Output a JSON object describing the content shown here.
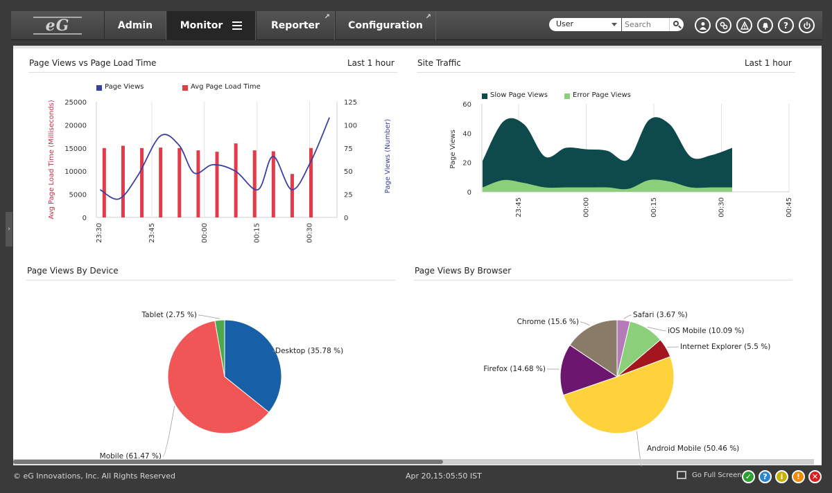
{
  "header": {
    "logo_text": "eG",
    "tabs": [
      {
        "label": "Admin"
      },
      {
        "label": "Monitor"
      },
      {
        "label": "Reporter"
      },
      {
        "label": "Configuration"
      }
    ],
    "user_select_value": "User",
    "search_placeholder": "Search",
    "icons": [
      "user-icon",
      "link-icon",
      "alert-icon",
      "bell-icon",
      "help-icon",
      "power-icon"
    ]
  },
  "panels": {
    "page_views_vs_load": {
      "title": "Page Views vs Page Load Time",
      "range": "Last 1 hour"
    },
    "site_traffic": {
      "title": "Site Traffic",
      "range": "Last 1 hour"
    },
    "by_device": {
      "title": "Page Views By Device"
    },
    "by_browser": {
      "title": "Page Views By Browser"
    }
  },
  "chart_data": [
    {
      "type": "bar",
      "title": "Page Views vs Page Load Time",
      "ylabel": "Avg Page Load Time (Milliseconds)",
      "y2label": "Page Views (Number)",
      "ylim": [
        0,
        25000
      ],
      "y_ticks": [
        "0",
        "5000",
        "10000",
        "15000",
        "20000",
        "25000"
      ],
      "y2lim": [
        0,
        125
      ],
      "y2_ticks": [
        "0",
        "25",
        "50",
        "75",
        "100",
        "125"
      ],
      "x_ticks": [
        "23:30",
        "23:45",
        "00:00",
        "00:15",
        "00:30"
      ],
      "series": [
        {
          "name": "Page Views",
          "type": "line",
          "color": "#3b3fa0",
          "x": [
            0.5,
            3,
            5.5,
            8.5,
            11,
            13,
            15.5,
            18.5,
            21.5,
            23.5,
            26,
            28.5,
            31
          ],
          "values": [
            30,
            20,
            45,
            88,
            78,
            48,
            57,
            50,
            30,
            66,
            30,
            60,
            108
          ]
        },
        {
          "name": "Avg Page Load Time",
          "type": "bar",
          "color": "#e23b4a",
          "x": [
            1,
            3.5,
            6,
            8.5,
            11,
            13.5,
            16,
            18.5,
            21,
            23.5,
            26,
            28.5
          ],
          "values": [
            15000,
            15500,
            15000,
            15100,
            15000,
            14500,
            14200,
            16000,
            14500,
            14300,
            9400,
            15000
          ]
        }
      ],
      "legend_position": "top-left"
    },
    {
      "type": "area",
      "title": "Site Traffic",
      "ylabel": "Page Views",
      "ylim": [
        0,
        60
      ],
      "y_ticks": [
        "0",
        "20",
        "40",
        "60"
      ],
      "x_ticks": [
        "23:45",
        "00:00",
        "00:15",
        "00:30",
        "00:45"
      ],
      "series": [
        {
          "name": "Slow Page Views",
          "color": "#0e4a4c",
          "values": [
            21,
            48,
            46,
            24,
            30,
            29,
            28,
            22,
            49,
            46,
            24,
            25,
            30
          ]
        },
        {
          "name": "Error Page Views",
          "color": "#8ccf7a",
          "values": [
            3,
            8,
            6,
            3,
            3,
            3,
            3,
            2,
            8,
            7,
            3,
            3,
            3
          ]
        }
      ],
      "legend_position": "top-left"
    },
    {
      "type": "pie",
      "title": "Page Views By Device",
      "slices": [
        {
          "label": "Desktop (35.78 %)",
          "value": 35.78,
          "color": "#1760a8"
        },
        {
          "label": "Mobile (61.47 %)",
          "value": 61.47,
          "color": "#f05656"
        },
        {
          "label": "Tablet (2.75 %)",
          "value": 2.75,
          "color": "#4ea84e"
        }
      ]
    },
    {
      "type": "pie",
      "title": "Page Views By Browser",
      "slices": [
        {
          "label": "Safari (3.67 %)",
          "value": 3.67,
          "color": "#b57ab8"
        },
        {
          "label": "iOS Mobile (10.09 %)",
          "value": 10.09,
          "color": "#8ccf7a"
        },
        {
          "label": "Internet Explorer (5.5 %)",
          "value": 5.5,
          "color": "#a3161f"
        },
        {
          "label": "Android Mobile (50.46 %)",
          "value": 50.46,
          "color": "#fdd23a"
        },
        {
          "label": "Firefox (14.68 %)",
          "value": 14.68,
          "color": "#6d1670"
        },
        {
          "label": "Chrome (15.6 %)",
          "value": 15.6,
          "color": "#8a7a68"
        }
      ]
    }
  ],
  "footer": {
    "copyright": "© eG Innovations, Inc. All Rights Reserved",
    "datetime": "Apr 20,15:05:50 IST",
    "fullscreen_label": "Go Full Screen",
    "status_icons": [
      {
        "name": "ok-status-icon",
        "glyph": "✓",
        "color": "#2ea02e"
      },
      {
        "name": "help-status-icon",
        "glyph": "?",
        "color": "#2a86d1"
      },
      {
        "name": "info-status-icon",
        "glyph": "i",
        "color": "#c8b400"
      },
      {
        "name": "warning-status-icon",
        "glyph": "!",
        "color": "#f08a00"
      },
      {
        "name": "error-status-icon",
        "glyph": "✕",
        "color": "#d92020"
      }
    ]
  }
}
